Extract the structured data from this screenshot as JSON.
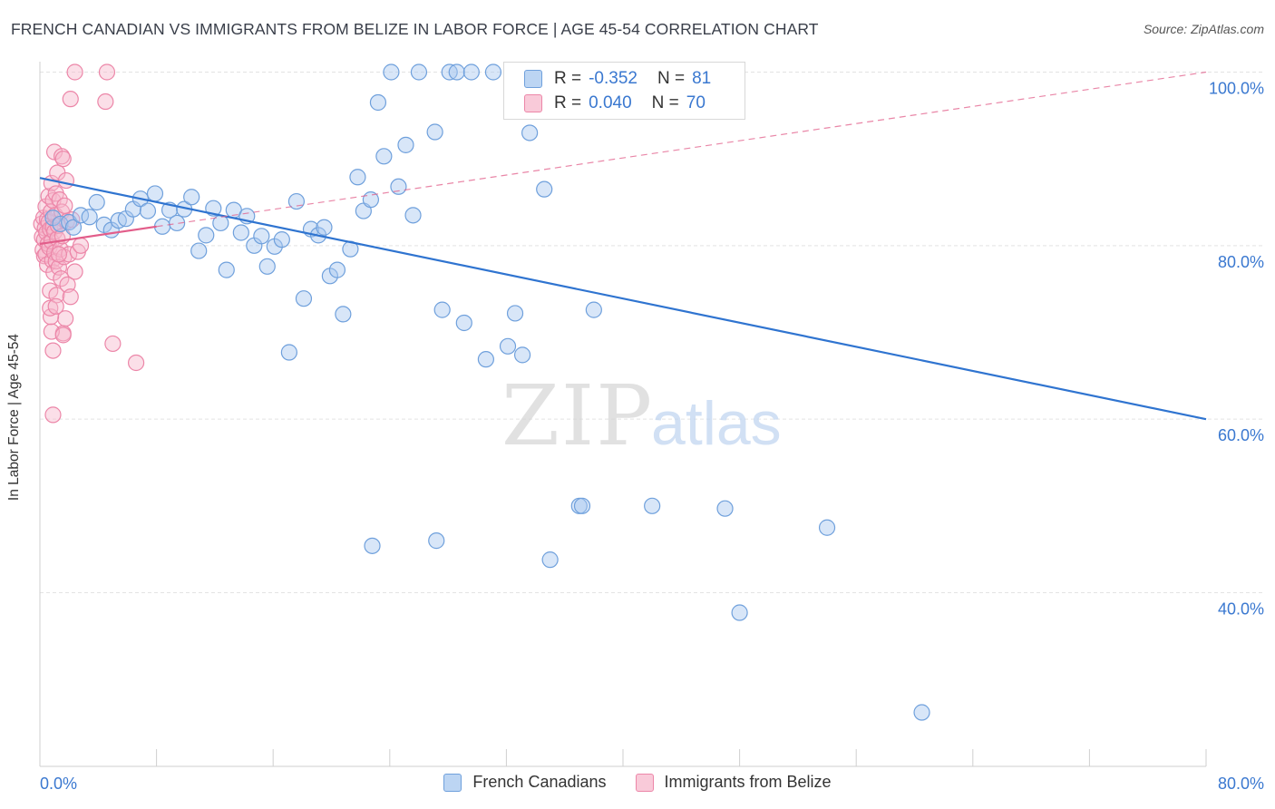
{
  "header": {
    "title": "FRENCH CANADIAN VS IMMIGRANTS FROM BELIZE IN LABOR FORCE | AGE 45-54 CORRELATION CHART",
    "source": "Source: ZipAtlas.com"
  },
  "watermark": {
    "zip": "ZIP",
    "atlas": "atlas"
  },
  "colors": {
    "blue_fill": "#a9c8ef",
    "blue_stroke": "#6fa0dc",
    "blue_line": "#2f74d0",
    "pink_fill": "#f6b7cb",
    "pink_stroke": "#ec86a8",
    "pink_line": "#e25d8a",
    "tick_label": "#3a78d0",
    "grid": "#e3e3e3"
  },
  "legend_top": [
    {
      "r_label": "R =",
      "r_value": "-0.352",
      "n_label": "N =",
      "n_value": "81"
    },
    {
      "r_label": "R =",
      "r_value": "0.040",
      "n_label": "N =",
      "n_value": "70"
    }
  ],
  "chart_data": {
    "type": "scatter",
    "title": "FRENCH CANADIAN VS IMMIGRANTS FROM BELIZE IN LABOR FORCE | AGE 45-54 CORRELATION CHART",
    "xlabel": "",
    "ylabel": "In Labor Force | Age 45-54",
    "xlim": [
      0,
      80
    ],
    "ylim": [
      20,
      102
    ],
    "x_tick_labels": [
      "0.0%",
      "80.0%"
    ],
    "y_ticks": [
      40,
      60,
      80,
      100
    ],
    "y_tick_labels": [
      "40.0%",
      "60.0%",
      "80.0%",
      "100.0%"
    ],
    "grid": true,
    "legend_placement": "top-center",
    "series": [
      {
        "name": "French Canadians",
        "color": "#a9c8ef",
        "R": -0.352,
        "N": 81,
        "trend": {
          "x": [
            0,
            80
          ],
          "y": [
            87.8,
            60.0
          ]
        },
        "points": [
          [
            0.9,
            83.2
          ],
          [
            1.4,
            82.5
          ],
          [
            2.0,
            82.7
          ],
          [
            2.3,
            82.1
          ],
          [
            2.8,
            83.5
          ],
          [
            3.4,
            83.3
          ],
          [
            3.9,
            85.0
          ],
          [
            4.4,
            82.4
          ],
          [
            4.9,
            81.8
          ],
          [
            5.4,
            82.9
          ],
          [
            5.9,
            83.1
          ],
          [
            6.4,
            84.2
          ],
          [
            6.9,
            85.4
          ],
          [
            7.4,
            84.0
          ],
          [
            7.9,
            86.0
          ],
          [
            8.4,
            82.2
          ],
          [
            8.9,
            84.1
          ],
          [
            9.4,
            82.6
          ],
          [
            9.9,
            84.2
          ],
          [
            10.4,
            85.6
          ],
          [
            10.9,
            79.4
          ],
          [
            11.4,
            81.2
          ],
          [
            11.9,
            84.3
          ],
          [
            12.4,
            82.6
          ],
          [
            12.8,
            77.2
          ],
          [
            13.3,
            84.1
          ],
          [
            13.8,
            81.5
          ],
          [
            14.2,
            83.4
          ],
          [
            14.7,
            80.0
          ],
          [
            15.2,
            81.1
          ],
          [
            15.6,
            77.6
          ],
          [
            16.1,
            79.9
          ],
          [
            16.6,
            80.7
          ],
          [
            17.1,
            67.7
          ],
          [
            17.6,
            85.1
          ],
          [
            18.1,
            73.9
          ],
          [
            18.6,
            81.9
          ],
          [
            19.1,
            81.2
          ],
          [
            19.5,
            82.1
          ],
          [
            19.9,
            76.5
          ],
          [
            20.4,
            77.2
          ],
          [
            20.8,
            72.1
          ],
          [
            21.3,
            79.6
          ],
          [
            21.8,
            87.9
          ],
          [
            22.2,
            84.0
          ],
          [
            22.7,
            85.3
          ],
          [
            23.2,
            96.5
          ],
          [
            23.6,
            90.3
          ],
          [
            24.1,
            100.0
          ],
          [
            24.6,
            86.8
          ],
          [
            25.1,
            91.6
          ],
          [
            25.6,
            83.5
          ],
          [
            26.0,
            100.0
          ],
          [
            27.1,
            93.1
          ],
          [
            27.6,
            72.6
          ],
          [
            28.1,
            100.0
          ],
          [
            28.6,
            100.0
          ],
          [
            29.1,
            71.1
          ],
          [
            29.6,
            100.0
          ],
          [
            30.6,
            66.9
          ],
          [
            31.1,
            100.0
          ],
          [
            32.1,
            68.4
          ],
          [
            32.6,
            72.2
          ],
          [
            33.1,
            67.4
          ],
          [
            33.6,
            93.0
          ],
          [
            34.6,
            86.5
          ],
          [
            35.1,
            100.0
          ],
          [
            36.0,
            100.0
          ],
          [
            37.0,
            50.0
          ],
          [
            38.0,
            72.6
          ],
          [
            39.0,
            100.0
          ],
          [
            40.0,
            100.0
          ],
          [
            22.8,
            45.4
          ],
          [
            27.2,
            46.0
          ],
          [
            35.0,
            43.8
          ],
          [
            37.2,
            50.0
          ],
          [
            42.0,
            50.0
          ],
          [
            47.0,
            49.7
          ],
          [
            54.0,
            47.5
          ],
          [
            48.0,
            37.7
          ],
          [
            60.5,
            26.2
          ]
        ]
      },
      {
        "name": "Immigrants from Belize",
        "color": "#f6b7cb",
        "R": 0.04,
        "N": 70,
        "trend": {
          "x": [
            0,
            8
          ],
          "y": [
            80.2,
            82.2
          ],
          "dashed_to": {
            "x": 80,
            "y": 100.0
          }
        },
        "points": [
          [
            0.1,
            82.5
          ],
          [
            0.15,
            81.0
          ],
          [
            0.2,
            79.5
          ],
          [
            0.25,
            83.2
          ],
          [
            0.3,
            78.8
          ],
          [
            0.3,
            80.7
          ],
          [
            0.35,
            82.0
          ],
          [
            0.4,
            79.0
          ],
          [
            0.4,
            84.5
          ],
          [
            0.45,
            81.5
          ],
          [
            0.5,
            83.0
          ],
          [
            0.5,
            77.8
          ],
          [
            0.55,
            80.2
          ],
          [
            0.6,
            82.7
          ],
          [
            0.6,
            85.7
          ],
          [
            0.65,
            79.8
          ],
          [
            0.7,
            74.8
          ],
          [
            0.7,
            81.9
          ],
          [
            0.75,
            83.9
          ],
          [
            0.8,
            80.5
          ],
          [
            0.8,
            87.2
          ],
          [
            0.85,
            78.3
          ],
          [
            0.9,
            82.1
          ],
          [
            0.9,
            85.2
          ],
          [
            0.95,
            76.9
          ],
          [
            1.0,
            79.2
          ],
          [
            1.0,
            81.6
          ],
          [
            1.0,
            90.8
          ],
          [
            1.05,
            83.5
          ],
          [
            1.1,
            86.0
          ],
          [
            1.1,
            78.2
          ],
          [
            1.15,
            74.3
          ],
          [
            1.2,
            80.8
          ],
          [
            1.2,
            88.4
          ],
          [
            1.25,
            82.3
          ],
          [
            1.3,
            77.5
          ],
          [
            1.35,
            85.3
          ],
          [
            1.4,
            79.6
          ],
          [
            1.45,
            76.2
          ],
          [
            1.5,
            83.9
          ],
          [
            1.5,
            90.3
          ],
          [
            1.55,
            81.1
          ],
          [
            1.6,
            69.9
          ],
          [
            1.65,
            78.7
          ],
          [
            1.7,
            84.6
          ],
          [
            1.75,
            71.6
          ],
          [
            1.8,
            87.5
          ],
          [
            1.85,
            82.8
          ],
          [
            1.9,
            75.5
          ],
          [
            2.0,
            79.0
          ],
          [
            2.1,
            74.1
          ],
          [
            2.2,
            83.0
          ],
          [
            2.4,
            77.0
          ],
          [
            2.6,
            79.3
          ],
          [
            2.8,
            80.0
          ],
          [
            0.9,
            60.5
          ],
          [
            0.9,
            67.9
          ],
          [
            0.8,
            70.1
          ],
          [
            0.75,
            71.8
          ],
          [
            1.6,
            69.7
          ],
          [
            2.1,
            96.9
          ],
          [
            2.4,
            100.0
          ],
          [
            4.6,
            100.0
          ],
          [
            4.5,
            96.6
          ],
          [
            5.0,
            68.7
          ],
          [
            6.6,
            66.5
          ],
          [
            1.6,
            90.0
          ],
          [
            0.7,
            72.8
          ],
          [
            1.3,
            79.0
          ],
          [
            1.1,
            73.0
          ]
        ]
      }
    ]
  }
}
